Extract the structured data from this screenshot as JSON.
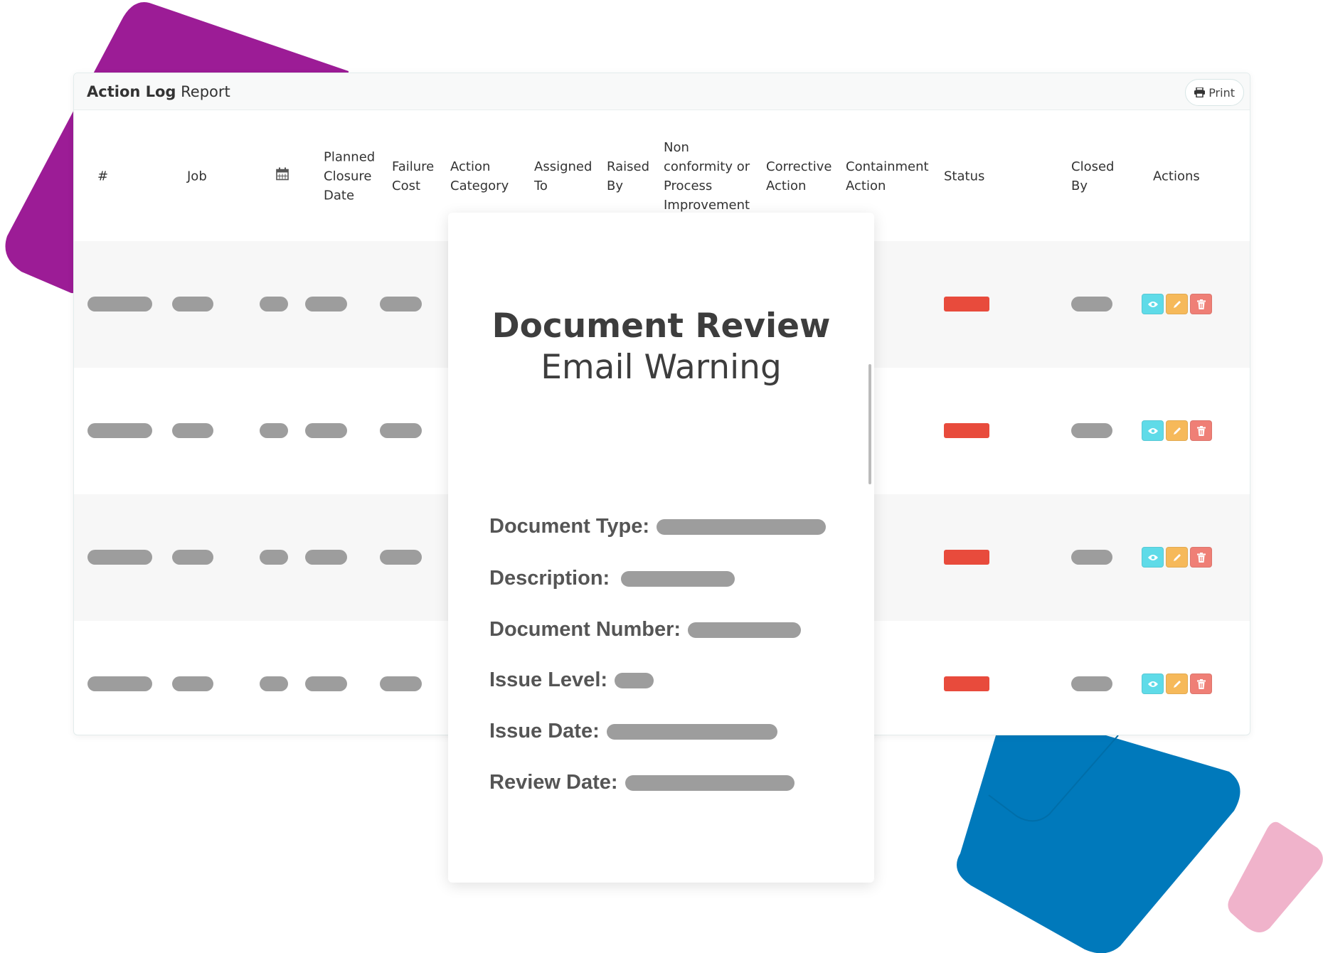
{
  "colors": {
    "purple": "#9c1c96",
    "blue": "#0079bb",
    "pink": "#f0b3cb",
    "status_red": "#e84b3c",
    "view": "#5fdbe8",
    "edit": "#f6b95a",
    "delete": "#ef7f76"
  },
  "card": {
    "title_bold": "Action Log",
    "title_rest": " Report",
    "print_label": "Print",
    "print_icon": "printer-icon"
  },
  "columns": [
    "#",
    "Job",
    "calendar-icon",
    "Planned Closure Date",
    "Failure Cost",
    "Action Category",
    "Assigned To",
    "Raised By",
    "Non conformity or Process Improvement",
    "Corrective Action",
    "Containment Action",
    "Status",
    "Closed By",
    "Actions"
  ],
  "rows": [
    {
      "actions": [
        "view",
        "edit",
        "delete"
      ]
    },
    {
      "actions": [
        "view",
        "edit",
        "delete"
      ]
    },
    {
      "actions": [
        "view",
        "edit",
        "delete"
      ]
    },
    {
      "actions": [
        "view",
        "edit",
        "delete"
      ]
    }
  ],
  "modal": {
    "title": "Document Review",
    "subtitle": "Email Warning",
    "fields": [
      "Document Type:",
      "Description:",
      "Document Number:",
      "Issue Level:",
      "Issue Date:",
      "Review Date:"
    ]
  }
}
